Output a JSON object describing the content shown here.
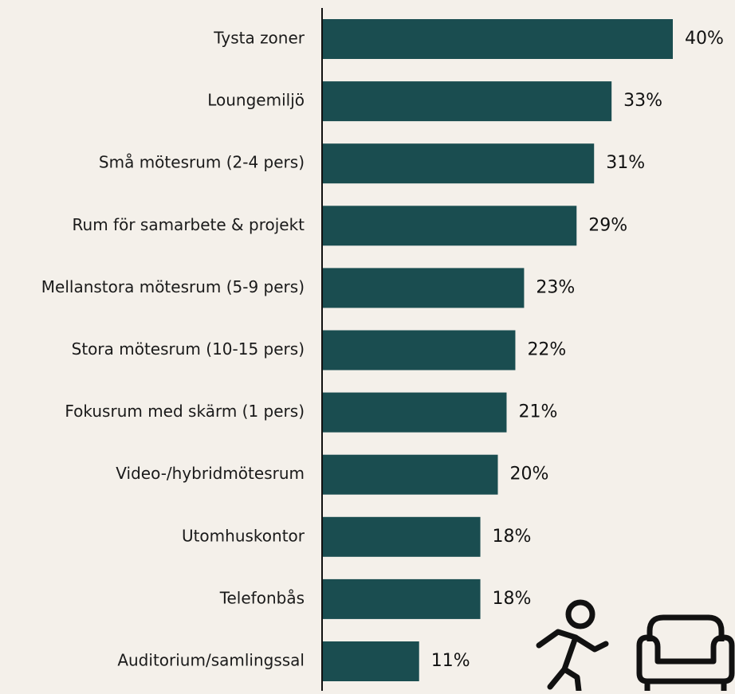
{
  "chart_data": {
    "type": "bar",
    "orientation": "horizontal",
    "categories": [
      "Tysta zoner",
      "Loungemiljö",
      "Små mötesrum (2-4 pers)",
      "Rum för samarbete & projekt",
      "Mellanstora mötesrum (5-9 pers)",
      "Stora mötesrum (10-15 pers)",
      "Fokusrum med skärm (1 pers)",
      "Video-/hybridmötesrum",
      "Utomhuskontor",
      "Telefonbås",
      "Auditorium/samlingssal"
    ],
    "values": [
      40,
      33,
      31,
      29,
      23,
      22,
      21,
      20,
      18,
      18,
      11
    ],
    "value_labels": [
      "40%",
      "33%",
      "31%",
      "29%",
      "23%",
      "22%",
      "21%",
      "20%",
      "18%",
      "18%",
      "11%"
    ],
    "color": "#1a4d50",
    "xlim": [
      0,
      40
    ]
  }
}
